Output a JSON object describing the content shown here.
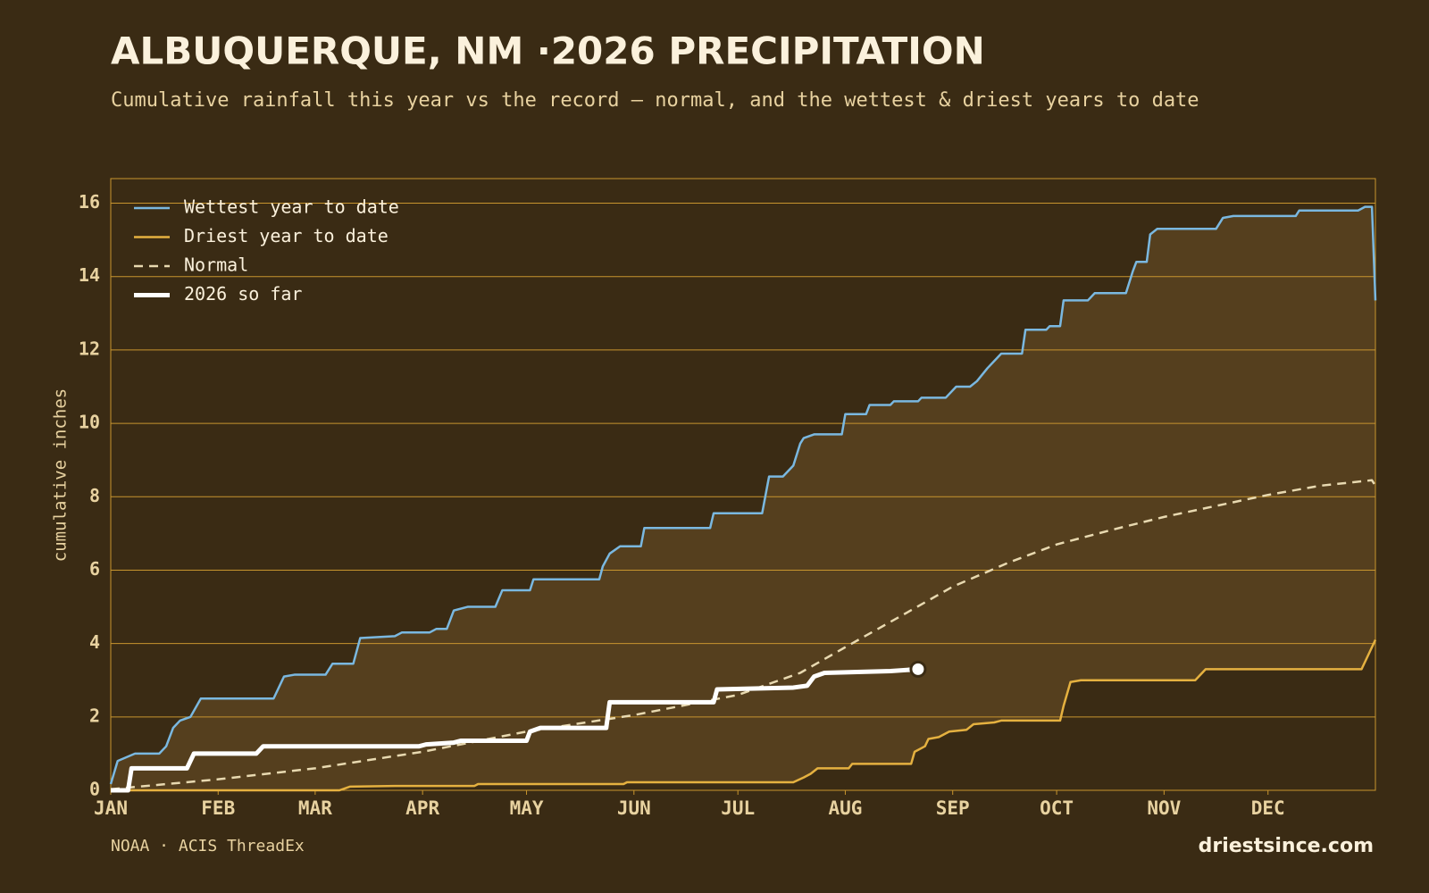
{
  "chart_data": {
    "type": "line",
    "title": "ALBUQUERQUE, NM ·2026 PRECIPITATION",
    "subtitle": "Cumulative rainfall this year vs the record — normal, and the wettest & driest years to date",
    "y_label": "cumulative inches",
    "source": "NOAA · ACIS ThreadEx",
    "site": "driestsince.com",
    "xlim": [
      1,
      366
    ],
    "xticks": [
      {
        "value": 1,
        "label": "JAN"
      },
      {
        "value": 32,
        "label": "FEB"
      },
      {
        "value": 60,
        "label": "MAR"
      },
      {
        "value": 91,
        "label": "APR"
      },
      {
        "value": 121,
        "label": "MAY"
      },
      {
        "value": 152,
        "label": "JUN"
      },
      {
        "value": 182,
        "label": "JUL"
      },
      {
        "value": 213,
        "label": "AUG"
      },
      {
        "value": 244,
        "label": "SEP"
      },
      {
        "value": 274,
        "label": "OCT"
      },
      {
        "value": 305,
        "label": "NOV"
      },
      {
        "value": 335,
        "label": "DEC"
      }
    ],
    "ylim": [
      0,
      16.67
    ],
    "yticks": [
      0,
      2,
      4,
      6,
      8,
      10,
      12,
      14,
      16
    ],
    "grid": true,
    "legend": "upper left",
    "band_between": [
      0,
      1
    ],
    "band_color": "#553f1e",
    "series": [
      {
        "name": "Wettest year to date",
        "color": "#7ab8e0",
        "x": [
          1,
          3,
          8,
          15,
          17,
          19,
          21,
          24,
          27,
          48,
          51,
          54,
          63,
          65,
          71,
          73,
          83,
          85,
          93,
          95,
          98,
          100,
          104,
          112,
          114,
          122,
          123,
          142,
          143,
          145,
          148,
          154,
          155,
          174,
          175,
          189,
          191,
          195,
          198,
          200,
          201,
          204,
          212,
          213,
          219,
          220,
          226,
          227,
          234,
          235,
          242,
          245,
          249,
          251,
          254,
          258,
          264,
          265,
          271,
          272,
          275,
          276,
          283,
          285,
          294,
          296,
          297,
          300,
          301,
          303,
          320,
          322,
          325,
          343,
          344,
          361,
          363,
          365,
          366
        ],
        "values": [
          0.17,
          0.8,
          1.0,
          1.0,
          1.2,
          1.7,
          1.9,
          2.0,
          2.5,
          2.5,
          3.1,
          3.15,
          3.15,
          3.45,
          3.45,
          4.15,
          4.2,
          4.3,
          4.3,
          4.4,
          4.4,
          4.9,
          5.0,
          5.0,
          5.45,
          5.45,
          5.75,
          5.75,
          6.1,
          6.45,
          6.65,
          6.65,
          7.15,
          7.15,
          7.55,
          7.55,
          8.55,
          8.55,
          8.85,
          9.45,
          9.6,
          9.7,
          9.7,
          10.25,
          10.25,
          10.5,
          10.5,
          10.6,
          10.6,
          10.7,
          10.7,
          11.0,
          11.0,
          11.15,
          11.5,
          11.9,
          11.9,
          12.55,
          12.55,
          12.65,
          12.65,
          13.35,
          13.35,
          13.55,
          13.55,
          14.15,
          14.4,
          14.4,
          15.15,
          15.3,
          15.3,
          15.6,
          15.65,
          15.65,
          15.8,
          15.8,
          15.9,
          15.9,
          13.35
        ]
      },
      {
        "name": "Driest year to date",
        "color": "#e5b140",
        "x": [
          1,
          67,
          70,
          83,
          106,
          107,
          149,
          150,
          198,
          201,
          203,
          205,
          214,
          215,
          232,
          233,
          236,
          237,
          240,
          243,
          248,
          250,
          256,
          258,
          275,
          276,
          278,
          281,
          314,
          315,
          317,
          362,
          366
        ],
        "values": [
          0,
          0,
          0.1,
          0.12,
          0.12,
          0.17,
          0.17,
          0.22,
          0.22,
          0.35,
          0.45,
          0.6,
          0.6,
          0.72,
          0.72,
          1.05,
          1.2,
          1.4,
          1.45,
          1.6,
          1.65,
          1.8,
          1.85,
          1.9,
          1.9,
          2.3,
          2.95,
          3.0,
          3.0,
          3.1,
          3.3,
          3.3,
          4.1
        ]
      },
      {
        "name": "Normal",
        "color": "#e8d9b0",
        "dash": true,
        "x": [
          1,
          32,
          60,
          91,
          121,
          152,
          182,
          200,
          213,
          230,
          244,
          260,
          274,
          290,
          305,
          320,
          335,
          350,
          365,
          366
        ],
        "values": [
          0.03,
          0.3,
          0.6,
          1.05,
          1.6,
          2.05,
          2.6,
          3.2,
          3.9,
          4.8,
          5.55,
          6.2,
          6.7,
          7.1,
          7.45,
          7.75,
          8.05,
          8.3,
          8.45,
          8.3
        ]
      },
      {
        "name": "2026 so far",
        "color": "#ffffff",
        "bold": true,
        "end_marker": true,
        "x": [
          1,
          6,
          7,
          23,
          25,
          43,
          45,
          90,
          92,
          100,
          102,
          121,
          122,
          125,
          144,
          145,
          175,
          176,
          198,
          202,
          204,
          207,
          226,
          234
        ],
        "values": [
          0,
          0,
          0.6,
          0.6,
          1.0,
          1.0,
          1.2,
          1.2,
          1.25,
          1.3,
          1.35,
          1.35,
          1.6,
          1.7,
          1.7,
          2.4,
          2.4,
          2.75,
          2.8,
          2.85,
          3.1,
          3.2,
          3.25,
          3.3
        ]
      }
    ]
  }
}
